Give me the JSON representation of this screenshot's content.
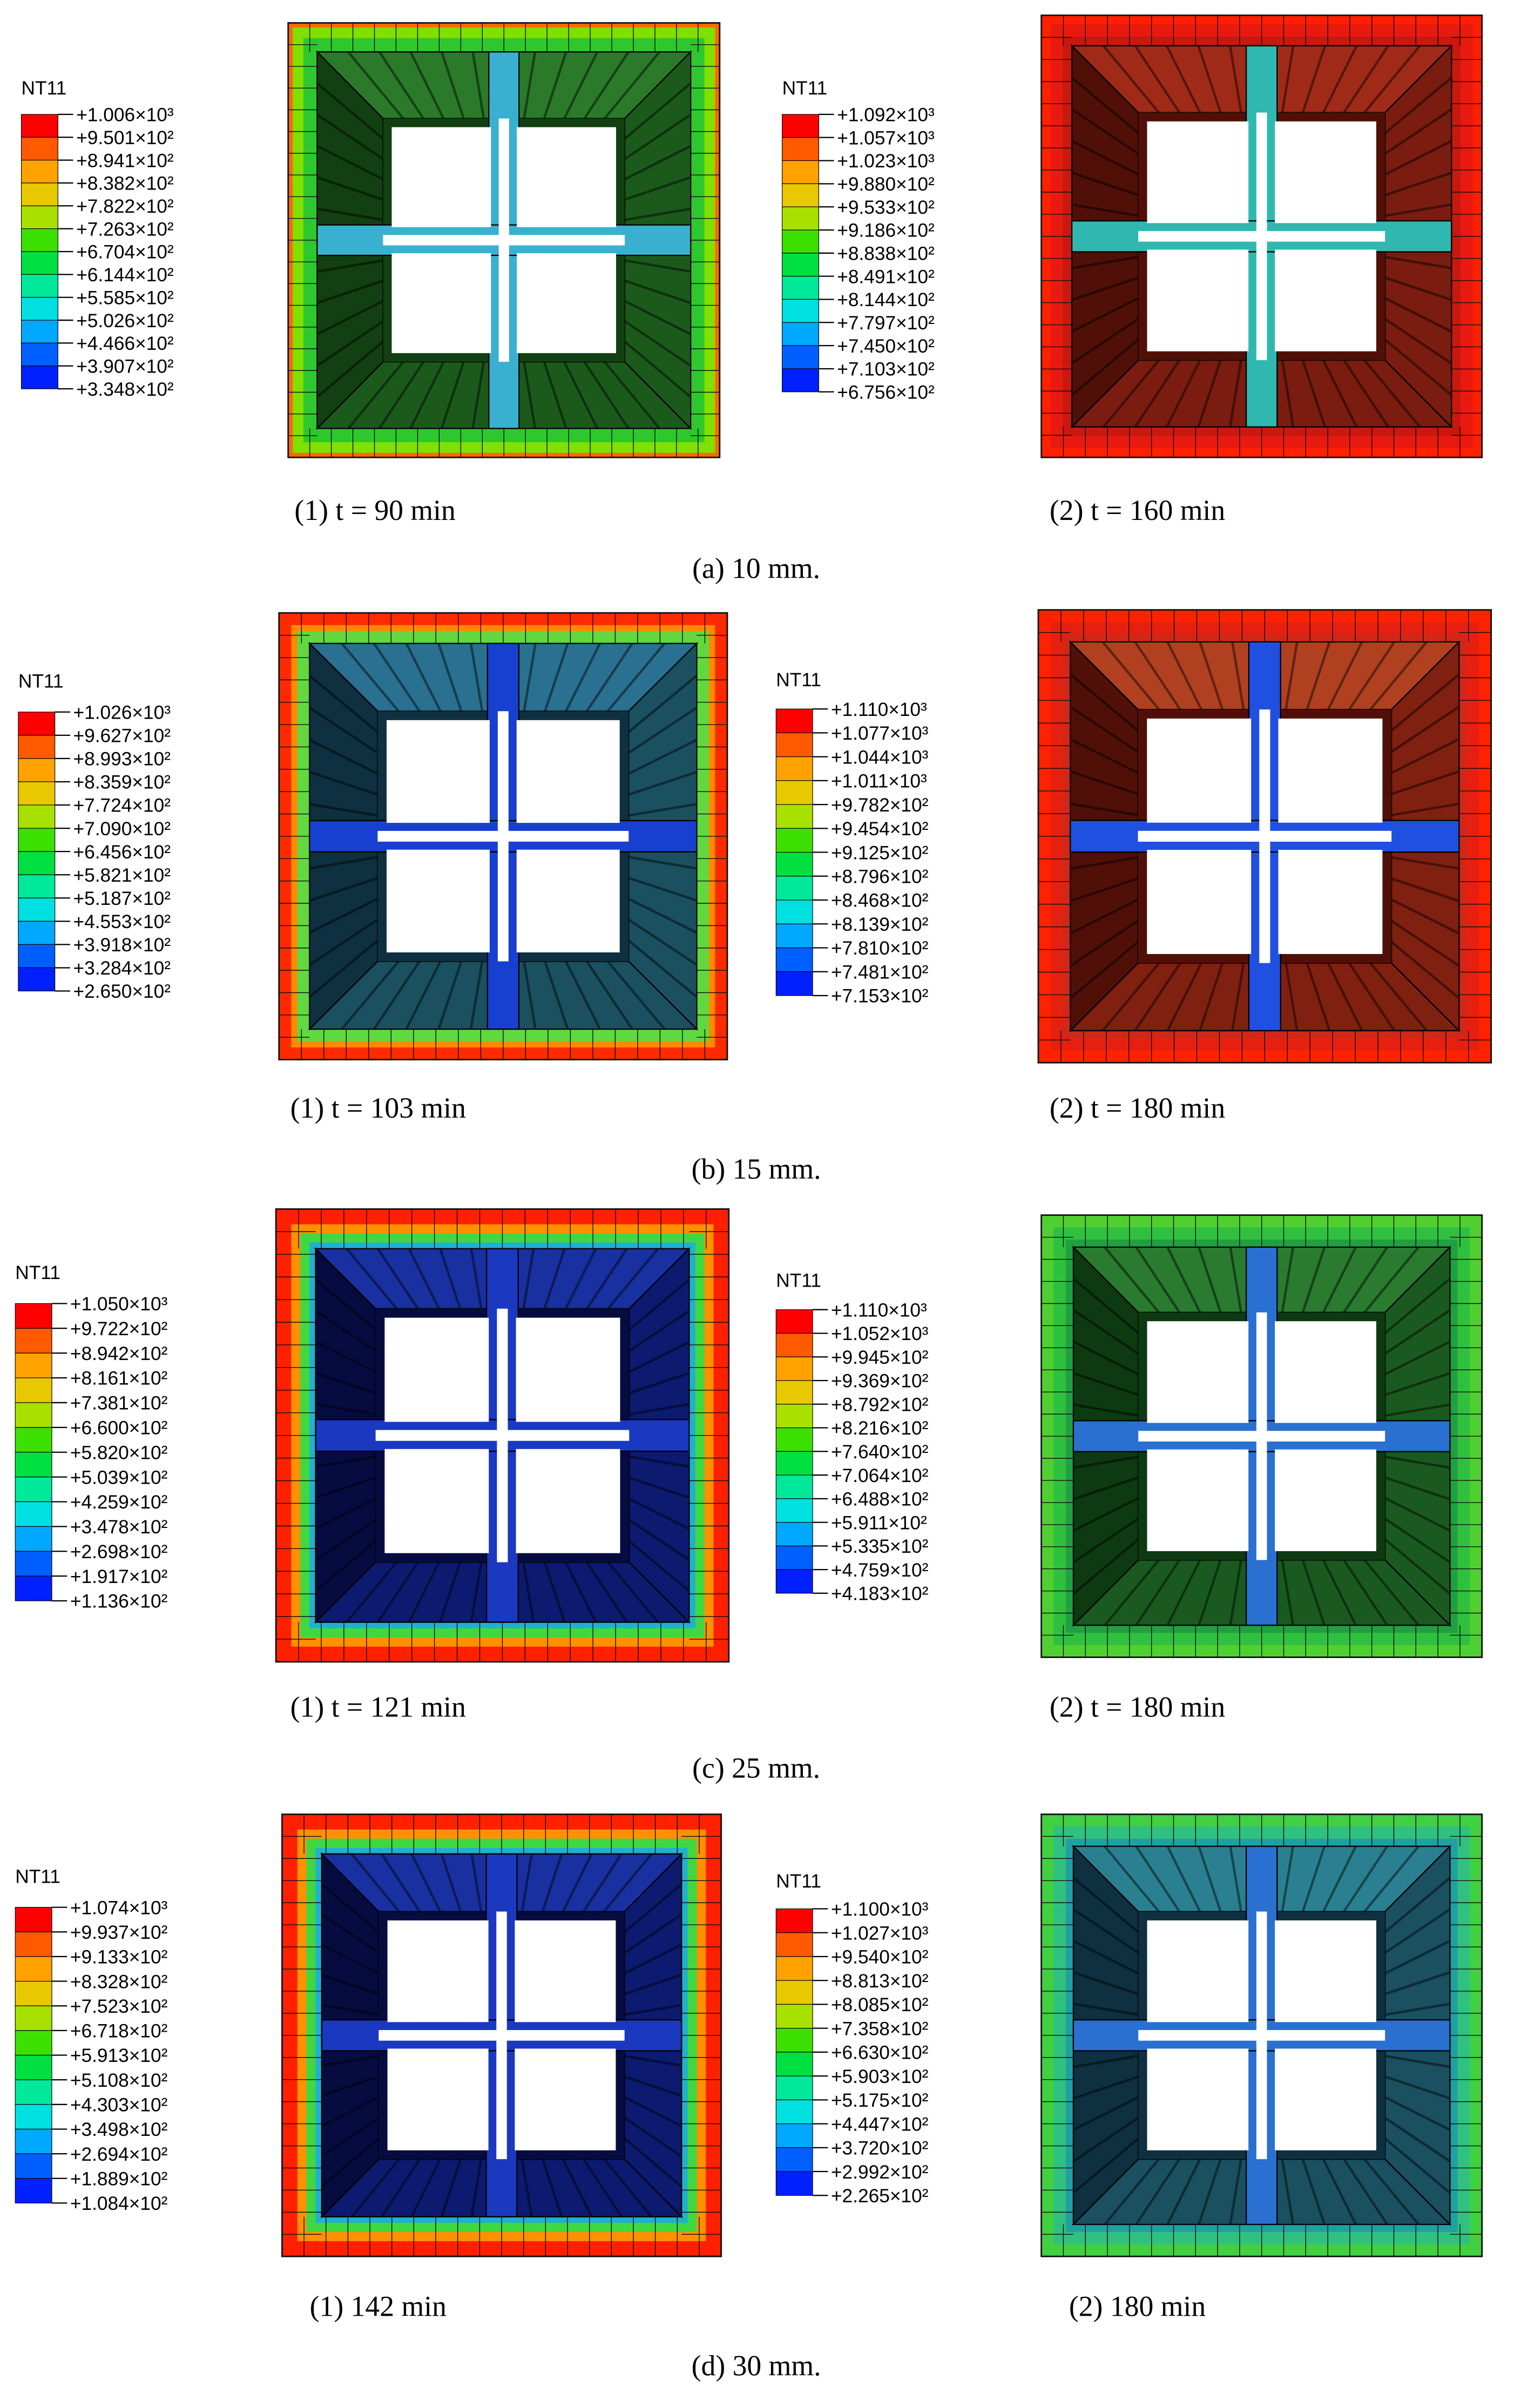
{
  "panels": [
    {
      "caption": "(a) 10 mm.",
      "plots": [
        {
          "legend_title": "NT11",
          "levels": [
            "+1.006×10³",
            "+9.501×10²",
            "+8.941×10²",
            "+8.382×10²",
            "+7.822×10²",
            "+7.263×10²",
            "+6.704×10²",
            "+6.144×10²",
            "+5.585×10²",
            "+5.026×10²",
            "+4.466×10²",
            "+3.907×10²",
            "+3.348×10²"
          ],
          "caption": "(1) t = 90 min"
        },
        {
          "legend_title": "NT11",
          "levels": [
            "+1.092×10³",
            "+1.057×10³",
            "+1.023×10³",
            "+9.880×10²",
            "+9.533×10²",
            "+9.186×10²",
            "+8.838×10²",
            "+8.491×10²",
            "+8.144×10²",
            "+7.797×10²",
            "+7.450×10²",
            "+7.103×10²",
            "+6.756×10²"
          ],
          "caption": "(2) t = 160 min"
        }
      ]
    },
    {
      "caption": "(b) 15 mm.",
      "plots": [
        {
          "legend_title": "NT11",
          "levels": [
            "+1.026×10³",
            "+9.627×10²",
            "+8.993×10²",
            "+8.359×10²",
            "+7.724×10²",
            "+7.090×10²",
            "+6.456×10²",
            "+5.821×10²",
            "+5.187×10²",
            "+4.553×10²",
            "+3.918×10²",
            "+3.284×10²",
            "+2.650×10²"
          ],
          "caption": "(1) t = 103 min"
        },
        {
          "legend_title": "NT11",
          "levels": [
            "+1.110×10³",
            "+1.077×10³",
            "+1.044×10³",
            "+1.011×10³",
            "+9.782×10²",
            "+9.454×10²",
            "+9.125×10²",
            "+8.796×10²",
            "+8.468×10²",
            "+8.139×10²",
            "+7.810×10²",
            "+7.481×10²",
            "+7.153×10²"
          ],
          "caption": "(2) t = 180 min"
        }
      ]
    },
    {
      "caption": "(c) 25 mm.",
      "plots": [
        {
          "legend_title": "NT11",
          "levels": [
            "+1.050×10³",
            "+9.722×10²",
            "+8.942×10²",
            "+8.161×10²",
            "+7.381×10²",
            "+6.600×10²",
            "+5.820×10²",
            "+5.039×10²",
            "+4.259×10²",
            "+3.478×10²",
            "+2.698×10²",
            "+1.917×10²",
            "+1.136×10²"
          ],
          "caption": "(1) t = 121 min"
        },
        {
          "legend_title": "NT11",
          "levels": [
            "+1.110×10³",
            "+1.052×10³",
            "+9.945×10²",
            "+9.369×10²",
            "+8.792×10²",
            "+8.216×10²",
            "+7.640×10²",
            "+7.064×10²",
            "+6.488×10²",
            "+5.911×10²",
            "+5.335×10²",
            "+4.759×10²",
            "+4.183×10²"
          ],
          "caption": "(2) t = 180 min"
        }
      ]
    },
    {
      "caption": "(d) 30 mm.",
      "plots": [
        {
          "legend_title": "NT11",
          "levels": [
            "+1.074×10³",
            "+9.937×10²",
            "+9.133×10²",
            "+8.328×10²",
            "+7.523×10²",
            "+6.718×10²",
            "+5.913×10²",
            "+5.108×10²",
            "+4.303×10²",
            "+3.498×10²",
            "+2.694×10²",
            "+1.889×10²",
            "+1.084×10²"
          ],
          "caption": "(1) 142 min"
        },
        {
          "legend_title": "NT11",
          "levels": [
            "+1.100×10³",
            "+1.027×10³",
            "+9.540×10²",
            "+8.813×10²",
            "+8.085×10²",
            "+7.358×10²",
            "+6.630×10²",
            "+5.903×10²",
            "+5.175×10²",
            "+4.447×10²",
            "+3.720×10²",
            "+2.992×10²",
            "+2.265×10²"
          ],
          "caption": "(2) 180 min"
        }
      ]
    }
  ]
}
